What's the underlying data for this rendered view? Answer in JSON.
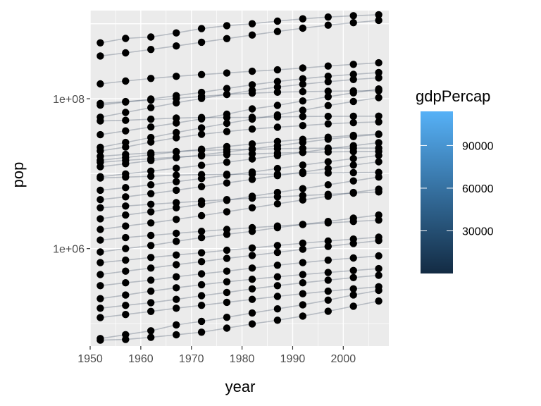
{
  "chart_data": {
    "type": "scatter",
    "title": "",
    "xlabel": "year",
    "ylabel": "pop",
    "x_scale": "linear",
    "y_scale": "log10",
    "xlim": [
      1950,
      2009
    ],
    "ylim": [
      50000,
      1500000000
    ],
    "x_ticks": [
      1950,
      1960,
      1970,
      1980,
      1990,
      2000
    ],
    "x_tick_labels": [
      "1950",
      "1960",
      "1970",
      "1980",
      "1990",
      "2000"
    ],
    "y_ticks": [
      1000000,
      100000000
    ],
    "y_tick_labels": [
      "1e+06",
      "1e+08"
    ],
    "years": [
      1952,
      1957,
      1962,
      1967,
      1972,
      1977,
      1982,
      1987,
      1992,
      1997,
      2002,
      2007
    ],
    "grid": true,
    "legend": {
      "title": "gdpPercap",
      "placement": "right",
      "type": "colorbar",
      "range": [
        0,
        114000
      ],
      "ticks": [
        30000,
        60000,
        90000
      ],
      "tick_labels": [
        "30000",
        "60000",
        "90000"
      ],
      "color_low": "#132B43",
      "color_high": "#56B1F7"
    },
    "series": [
      {
        "values": [
          556263527,
          637408000,
          665770000,
          754550000,
          862030000,
          943455000,
          1000281000,
          1084035000,
          1164970000,
          1230075000,
          1280400000,
          1318683096
        ]
      },
      {
        "values": [
          372000000,
          409000000,
          454000000,
          506000000,
          567000000,
          634000000,
          708000000,
          788000000,
          872000000,
          959000000,
          1034172547,
          1110396331
        ]
      },
      {
        "values": [
          157553000,
          171984000,
          186538000,
          198712000,
          209896000,
          220239000,
          232187835,
          242803533,
          256894189,
          272911760,
          287675526,
          301139947
        ]
      },
      {
        "values": [
          82052000,
          90124000,
          99028000,
          109960000,
          121282000,
          136725000,
          153343000,
          169276000,
          184816000,
          199278000,
          211060000,
          223547000
        ]
      },
      {
        "values": [
          86459025,
          91563009,
          95831757,
          100825279,
          107188273,
          113872473,
          118454974,
          122091325,
          124329269,
          125956499,
          127065841,
          127467972
        ]
      },
      {
        "values": [
          56602560,
          65551171,
          76039390,
          88049823,
          100840058,
          114313951,
          128863180,
          142938076,
          155975974,
          168546719,
          180357550,
          190010647
        ]
      },
      {
        "values": [
          50430000,
          51430000,
          53292000,
          55163000,
          56079000,
          56179000,
          56339704,
          56981620,
          57866349,
          58106000,
          58371000,
          58543000
        ]
      },
      {
        "values": [
          33119096,
          37173340,
          41871351,
          47287752,
          53740085,
          62209173,
          73039376,
          81551520,
          93364244,
          106207839,
          119901274,
          135031164
        ]
      },
      {
        "values": [
          22438691,
          26072194,
          30325264,
          35356600,
          40850141,
          46850962,
          53456774,
          60641899,
          69940728,
          80908147,
          91951281,
          103370555
        ]
      },
      {
        "values": [
          20092996,
          22611552,
          26420307,
          30131000,
          33505000,
          36436000,
          39326000,
          41622000,
          43805450,
          46173816,
          47969150,
          49044790
        ]
      },
      {
        "values": [
          17010154,
          18054130,
          18917500,
          19732425,
          20470013,
          20852000,
          21100000,
          21500000,
          21800000,
          21880000,
          21900000,
          21920000
        ]
      },
      {
        "values": [
          15063000,
          16400000,
          17900000,
          19500000,
          21200000,
          23000000,
          24900000,
          26800000,
          28700000,
          30600000,
          32400000,
          33757175
        ]
      },
      {
        "values": [
          14144000,
          15032000,
          15825000,
          16578000,
          17257000,
          17876000,
          18349000,
          18805000,
          19195000,
          19480000,
          19700000,
          19860000
        ]
      },
      {
        "values": [
          12350771,
          13545930,
          14960000,
          16300000,
          17800000,
          19450000,
          21350000,
          23600000,
          26100000,
          28900000,
          31200000,
          33400000
        ]
      },
      {
        "values": [
          9100000,
          9900000,
          10800000,
          11800000,
          12900000,
          14200000,
          15700000,
          17400000,
          19300000,
          21400000,
          23600000,
          25900000
        ]
      },
      {
        "values": [
          8730405,
          8989111,
          9218400,
          9556500,
          9709100,
          9821800,
          9856303,
          9870200,
          10045622,
          10199787,
          10311970,
          10392226
        ]
      },
      {
        "values": [
          6000000,
          6500000,
          7100000,
          7800000,
          8600000,
          9500000,
          10500000,
          11700000,
          13000000,
          14400000,
          15900000,
          17500000
        ]
      },
      {
        "values": [
          4500000,
          4900000,
          5400000,
          6000000,
          6700000,
          7500000,
          8400000,
          9400000,
          10500000,
          11700000,
          13000000,
          14400000
        ]
      },
      {
        "values": [
          3500000,
          3700000,
          3900000,
          4100000,
          4300000,
          4500000,
          4700000,
          4900000,
          5100000,
          5300000,
          5500000,
          5700000
        ]
      },
      {
        "values": [
          2500000,
          2800000,
          3100000,
          3500000,
          3900000,
          4400000,
          5000000,
          5600000,
          6300000,
          7100000,
          8000000,
          9000000
        ]
      },
      {
        "values": [
          1800000,
          2000000,
          2200000,
          2450000,
          2750000,
          3100000,
          3500000,
          3950000,
          4450000,
          5000000,
          5600000,
          6200000
        ]
      },
      {
        "values": [
          1300000,
          1400000,
          1500000,
          1600000,
          1700000,
          1800000,
          1900000,
          2000000,
          2100000,
          2200000,
          2300000,
          2400000
        ]
      },
      {
        "values": [
          900000,
          1000000,
          1100000,
          1250000,
          1400000,
          1550000,
          1700000,
          1900000,
          2100000,
          2300000,
          2550000,
          2800000
        ]
      },
      {
        "values": [
          650000,
          700000,
          760000,
          820000,
          880000,
          950000,
          1020000,
          1100000,
          1180000,
          1260000,
          1340000,
          1420000
        ]
      },
      {
        "values": [
          450000,
          500000,
          550000,
          610000,
          670000,
          740000,
          810000,
          890000,
          980000,
          1070000,
          1170000,
          1280000
        ]
      },
      {
        "values": [
          320000,
          350000,
          380000,
          420000,
          460000,
          500000,
          550000,
          600000,
          650000,
          700000,
          750000,
          800000
        ]
      },
      {
        "values": [
          215000,
          240000,
          270000,
          300000,
          330000,
          360000,
          390000,
          420000,
          450000,
          480000,
          510000,
          540000
        ]
      },
      {
        "values": [
          160000,
          175000,
          190000,
          210000,
          235000,
          260000,
          290000,
          320000,
          350000,
          380000,
          410000,
          440000
        ]
      },
      {
        "values": [
          120000,
          132000,
          145000,
          160000,
          175000,
          192000,
          210000,
          230000,
          250000,
          270000,
          290000,
          310000
        ]
      },
      {
        "values": [
          63000,
          71000,
          80000,
          96000,
          107000,
          121000,
          138000,
          157000,
          178000,
          205000,
          241000,
          277000
        ]
      },
      {
        "values": [
          60011,
          61325,
          65345,
          70787,
          76595,
          86796,
          98593,
          110812,
          125911,
          145608,
          170372,
          199579
        ]
      }
    ]
  }
}
